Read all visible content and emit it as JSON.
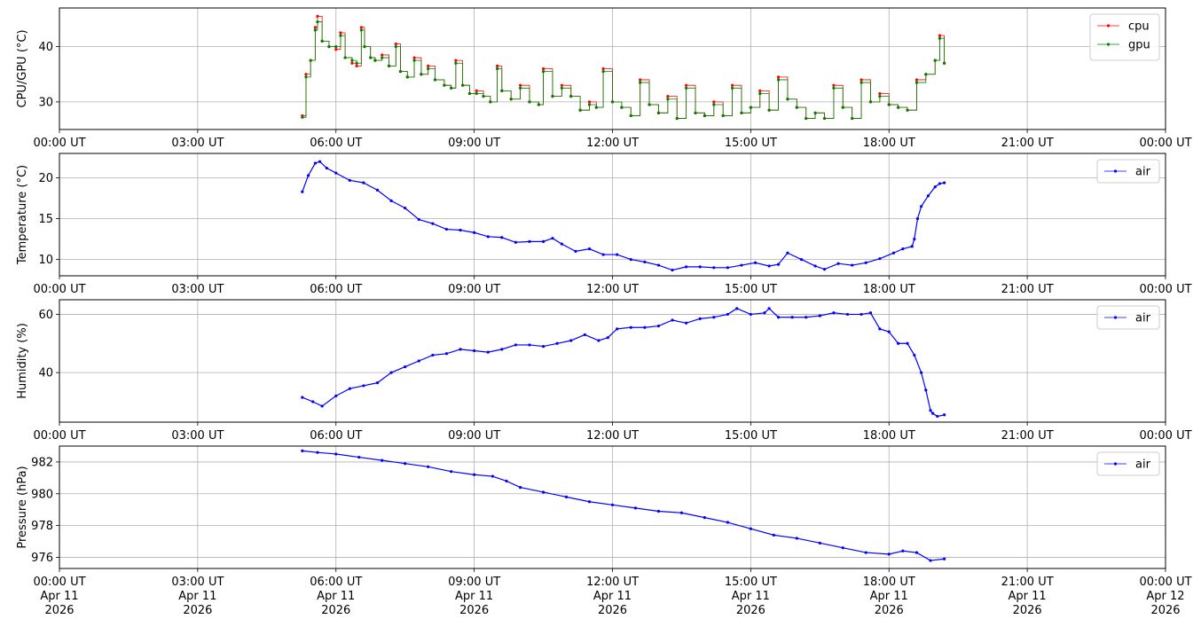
{
  "chart_data": [
    {
      "type": "line",
      "ylabel": "CPU/GPU (°C)",
      "xlim_hours": [
        0,
        24
      ],
      "ylim": [
        25,
        47
      ],
      "yticks": [
        30,
        40
      ],
      "xtick_labels": [
        "00:00 UT",
        "03:00 UT",
        "06:00 UT",
        "09:00 UT",
        "12:00 UT",
        "15:00 UT",
        "18:00 UT",
        "21:00 UT",
        "00:00 UT"
      ],
      "grid": true,
      "legend": "top-right",
      "series": [
        {
          "name": "cpu",
          "color": "#ff0000",
          "x": [
            5.27,
            5.35,
            5.45,
            5.55,
            5.6,
            5.7,
            5.85,
            6.0,
            6.1,
            6.2,
            6.35,
            6.45,
            6.55,
            6.62,
            6.75,
            6.85,
            7.0,
            7.15,
            7.3,
            7.4,
            7.55,
            7.7,
            7.85,
            8.0,
            8.15,
            8.35,
            8.5,
            8.6,
            8.75,
            8.9,
            9.05,
            9.2,
            9.35,
            9.5,
            9.6,
            9.8,
            10.0,
            10.2,
            10.4,
            10.5,
            10.7,
            10.9,
            11.1,
            11.3,
            11.5,
            11.65,
            11.8,
            12.0,
            12.2,
            12.4,
            12.6,
            12.8,
            13.0,
            13.2,
            13.4,
            13.6,
            13.8,
            14.0,
            14.2,
            14.4,
            14.6,
            14.8,
            15.0,
            15.2,
            15.4,
            15.6,
            15.8,
            16.0,
            16.2,
            16.4,
            16.6,
            16.8,
            17.0,
            17.2,
            17.4,
            17.6,
            17.8,
            18.0,
            18.2,
            18.4,
            18.6,
            18.8,
            19.0,
            19.1,
            19.2
          ],
          "values": [
            27.5,
            35,
            37.5,
            43.5,
            45.5,
            41,
            40,
            39.5,
            42.5,
            38,
            37,
            36.5,
            43.5,
            40,
            38,
            37.5,
            38.5,
            36.5,
            40.5,
            35.5,
            34.5,
            38,
            35,
            36.5,
            34,
            33,
            32.5,
            37.5,
            33,
            31.5,
            32,
            31,
            30,
            36.5,
            32,
            30.5,
            33,
            30,
            29.5,
            36,
            31,
            33,
            31,
            28.5,
            30,
            29,
            36,
            30,
            29,
            27.5,
            34,
            29.5,
            28,
            31,
            27,
            33,
            28,
            27.5,
            30,
            27.5,
            33,
            28,
            29,
            32,
            28.5,
            34.5,
            30.5,
            29,
            27,
            28,
            27,
            33,
            29,
            27,
            34,
            30,
            31.5,
            29.5,
            29,
            28.5,
            34,
            35,
            37.5,
            42,
            37
          ]
        },
        {
          "name": "gpu",
          "color": "#008000",
          "x": [
            5.27,
            5.35,
            5.45,
            5.55,
            5.6,
            5.7,
            5.85,
            6.0,
            6.1,
            6.2,
            6.35,
            6.45,
            6.55,
            6.62,
            6.75,
            6.85,
            7.0,
            7.15,
            7.3,
            7.4,
            7.55,
            7.7,
            7.85,
            8.0,
            8.15,
            8.35,
            8.5,
            8.6,
            8.75,
            8.9,
            9.05,
            9.2,
            9.35,
            9.5,
            9.6,
            9.8,
            10.0,
            10.2,
            10.4,
            10.5,
            10.7,
            10.9,
            11.1,
            11.3,
            11.5,
            11.65,
            11.8,
            12.0,
            12.2,
            12.4,
            12.6,
            12.8,
            13.0,
            13.2,
            13.4,
            13.6,
            13.8,
            14.0,
            14.2,
            14.4,
            14.6,
            14.8,
            15.0,
            15.2,
            15.4,
            15.6,
            15.8,
            16.0,
            16.2,
            16.4,
            16.6,
            16.8,
            17.0,
            17.2,
            17.4,
            17.6,
            17.8,
            18.0,
            18.2,
            18.4,
            18.6,
            18.8,
            19.0,
            19.1,
            19.2
          ],
          "values": [
            27.2,
            34.5,
            37.5,
            43,
            44.5,
            41,
            40,
            40,
            42,
            38,
            37.5,
            37,
            43,
            40,
            38,
            37.5,
            38,
            36.5,
            40,
            35.5,
            34.5,
            37.5,
            35,
            36,
            34,
            33,
            32.5,
            37,
            33,
            31.5,
            31.5,
            31,
            30,
            36,
            32,
            30.5,
            32.5,
            30,
            29.5,
            35.5,
            31,
            32.5,
            31,
            28.5,
            29.5,
            29,
            35.5,
            30,
            29,
            27.5,
            33.5,
            29.5,
            28,
            30.5,
            27,
            32.5,
            28,
            27.5,
            29.5,
            27.5,
            32.5,
            28,
            29,
            31.5,
            28.5,
            34,
            30.5,
            29,
            27,
            28,
            27,
            32.5,
            29,
            27,
            33.5,
            30,
            31,
            29.5,
            29,
            28.5,
            33.5,
            35,
            37.5,
            41.5,
            37
          ]
        }
      ]
    },
    {
      "type": "line",
      "ylabel": "Temperature (°C)",
      "xlim_hours": [
        0,
        24
      ],
      "ylim": [
        8,
        23
      ],
      "yticks": [
        10,
        15,
        20
      ],
      "xtick_labels": [
        "00:00 UT",
        "03:00 UT",
        "06:00 UT",
        "09:00 UT",
        "12:00 UT",
        "15:00 UT",
        "18:00 UT",
        "21:00 UT",
        "00:00 UT"
      ],
      "grid": true,
      "legend": "top-right",
      "series": [
        {
          "name": "air",
          "color": "#0000ff",
          "x": [
            5.27,
            5.4,
            5.55,
            5.65,
            5.8,
            6.0,
            6.3,
            6.6,
            6.9,
            7.2,
            7.5,
            7.8,
            8.1,
            8.4,
            8.7,
            9.0,
            9.3,
            9.6,
            9.9,
            10.2,
            10.5,
            10.7,
            10.9,
            11.2,
            11.5,
            11.8,
            12.1,
            12.4,
            12.7,
            13.0,
            13.3,
            13.6,
            13.9,
            14.2,
            14.5,
            14.8,
            15.1,
            15.4,
            15.6,
            15.8,
            16.1,
            16.4,
            16.6,
            16.9,
            17.2,
            17.5,
            17.8,
            18.1,
            18.3,
            18.5,
            18.55,
            18.62,
            18.7,
            18.85,
            19.0,
            19.1,
            19.2
          ],
          "values": [
            18.3,
            20.3,
            21.8,
            22,
            21.2,
            20.6,
            19.7,
            19.4,
            18.5,
            17.2,
            16.3,
            14.9,
            14.4,
            13.7,
            13.6,
            13.3,
            12.8,
            12.7,
            12.1,
            12.2,
            12.2,
            12.6,
            11.9,
            11.0,
            11.3,
            10.6,
            10.6,
            10.0,
            9.7,
            9.3,
            8.7,
            9.1,
            9.1,
            9.0,
            9.0,
            9.3,
            9.6,
            9.2,
            9.4,
            10.8,
            10.0,
            9.2,
            8.8,
            9.5,
            9.3,
            9.6,
            10.1,
            10.8,
            11.3,
            11.6,
            12.5,
            15,
            16.5,
            17.8,
            18.9,
            19.3,
            19.4
          ]
        }
      ]
    },
    {
      "type": "line",
      "ylabel": "Humidity (%)",
      "xlim_hours": [
        0,
        24
      ],
      "ylim": [
        23,
        65
      ],
      "yticks": [
        40,
        60
      ],
      "xtick_labels": [
        "00:00 UT",
        "03:00 UT",
        "06:00 UT",
        "09:00 UT",
        "12:00 UT",
        "15:00 UT",
        "18:00 UT",
        "21:00 UT",
        "00:00 UT"
      ],
      "grid": true,
      "legend": "top-right",
      "series": [
        {
          "name": "air",
          "color": "#0000ff",
          "x": [
            5.27,
            5.5,
            5.7,
            6.0,
            6.3,
            6.6,
            6.9,
            7.2,
            7.5,
            7.8,
            8.1,
            8.4,
            8.7,
            9.0,
            9.3,
            9.6,
            9.9,
            10.2,
            10.5,
            10.8,
            11.1,
            11.4,
            11.7,
            11.9,
            12.1,
            12.4,
            12.7,
            13.0,
            13.3,
            13.6,
            13.9,
            14.2,
            14.5,
            14.7,
            15.0,
            15.3,
            15.4,
            15.6,
            15.9,
            16.2,
            16.5,
            16.8,
            17.1,
            17.4,
            17.6,
            17.8,
            18.0,
            18.2,
            18.4,
            18.55,
            18.7,
            18.8,
            18.9,
            18.95,
            19.05,
            19.2
          ],
          "values": [
            31.5,
            30,
            28.5,
            32,
            34.5,
            35.5,
            36.5,
            40,
            42,
            44,
            46,
            46.5,
            48,
            47.5,
            47,
            48,
            49.5,
            49.5,
            49,
            50,
            51,
            53,
            51,
            52,
            55,
            55.5,
            55.5,
            56,
            58,
            57,
            58.5,
            59,
            60,
            62,
            60,
            60.5,
            62,
            59,
            59,
            59,
            59.5,
            60.5,
            60,
            60,
            60.5,
            55,
            54,
            50,
            50,
            46,
            40,
            34,
            27,
            26,
            25,
            25.5
          ]
        }
      ]
    },
    {
      "type": "line",
      "ylabel": "Pressure (hPa)",
      "xlim_hours": [
        0,
        24
      ],
      "ylim": [
        975.3,
        983.0
      ],
      "yticks": [
        976,
        978,
        980,
        982
      ],
      "xtick_labels": [
        "00:00 UT\nApr 11\n2026",
        "03:00 UT\nApr 11\n2026",
        "06:00 UT\nApr 11\n2026",
        "09:00 UT\nApr 11\n2026",
        "12:00 UT\nApr 11\n2026",
        "15:00 UT\nApr 11\n2026",
        "18:00 UT\nApr 11\n2026",
        "21:00 UT\nApr 11\n2026",
        "00:00 UT\nApr 12\n2026"
      ],
      "grid": true,
      "legend": "top-right",
      "series": [
        {
          "name": "air",
          "color": "#0000ff",
          "x": [
            5.27,
            5.6,
            6.0,
            6.5,
            7.0,
            7.5,
            8.0,
            8.5,
            9.0,
            9.4,
            9.7,
            10.0,
            10.5,
            11.0,
            11.5,
            12.0,
            12.5,
            13.0,
            13.5,
            14.0,
            14.5,
            15.0,
            15.5,
            16.0,
            16.5,
            17.0,
            17.5,
            18.0,
            18.3,
            18.6,
            18.9,
            19.2
          ],
          "values": [
            982.7,
            982.6,
            982.5,
            982.3,
            982.1,
            981.9,
            981.7,
            981.4,
            981.2,
            981.1,
            980.8,
            980.4,
            980.1,
            979.8,
            979.5,
            979.3,
            979.1,
            978.9,
            978.8,
            978.5,
            978.2,
            977.8,
            977.4,
            977.2,
            976.9,
            976.6,
            976.3,
            976.2,
            976.4,
            976.3,
            975.8,
            975.9
          ]
        }
      ]
    }
  ]
}
